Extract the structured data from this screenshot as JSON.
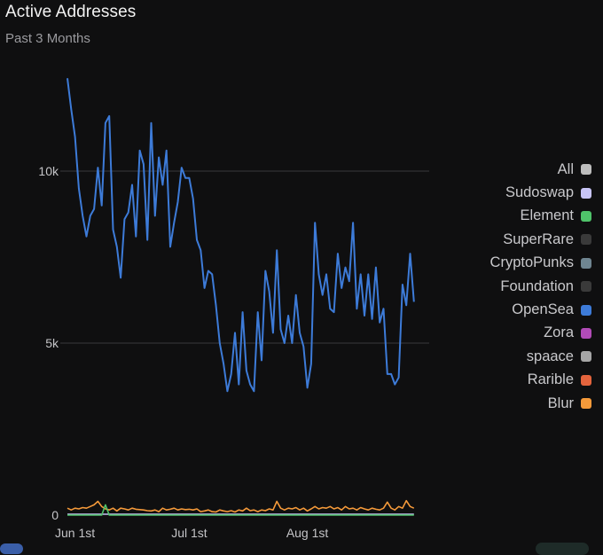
{
  "header": {
    "title": "Active Addresses",
    "subtitle": "Past 3 Months"
  },
  "legend": {
    "items": [
      {
        "label": "All",
        "color": "#bdbdbd"
      },
      {
        "label": "Sudoswap",
        "color": "#c7c4f5"
      },
      {
        "label": "Element",
        "color": "#4fc36a"
      },
      {
        "label": "SuperRare",
        "color": "#3a3a3a"
      },
      {
        "label": "CryptoPunks",
        "color": "#6f8591"
      },
      {
        "label": "Foundation",
        "color": "#3a3a3a"
      },
      {
        "label": "OpenSea",
        "color": "#3d7bd8"
      },
      {
        "label": "Zora",
        "color": "#b14bb7"
      },
      {
        "label": "spaace",
        "color": "#a6a6a6"
      },
      {
        "label": "Rarible",
        "color": "#e4643d"
      },
      {
        "label": "Blur",
        "color": "#f59a3a"
      }
    ]
  },
  "chart_data": {
    "type": "line",
    "title": "Active Addresses",
    "subtitle": "Past 3 Months",
    "xlabel": "",
    "ylabel": "",
    "ylim": [
      0,
      12500
    ],
    "y_ticks": [
      {
        "value": 0,
        "label": "0"
      },
      {
        "value": 5000,
        "label": "5k"
      },
      {
        "value": 10000,
        "label": "10k"
      }
    ],
    "x_ticks": [
      {
        "day": 0,
        "label": "Jun 1st"
      },
      {
        "day": 30,
        "label": "Jul 1st"
      },
      {
        "day": 61,
        "label": "Aug 1st"
      }
    ],
    "x_range_days": [
      -2,
      93
    ],
    "grid": true,
    "legend_position": "right",
    "series": [
      {
        "name": "OpenSea",
        "color": "#3d7bd8",
        "points": [
          [
            -2,
            12700
          ],
          [
            -1,
            11800
          ],
          [
            0,
            11000
          ],
          [
            1,
            9500
          ],
          [
            2,
            8700
          ],
          [
            3,
            8100
          ],
          [
            4,
            8700
          ],
          [
            5,
            8900
          ],
          [
            6,
            10100
          ],
          [
            7,
            9000
          ],
          [
            8,
            11400
          ],
          [
            9,
            11600
          ],
          [
            10,
            8300
          ],
          [
            11,
            7800
          ],
          [
            12,
            6900
          ],
          [
            13,
            8600
          ],
          [
            14,
            8800
          ],
          [
            15,
            9600
          ],
          [
            16,
            8100
          ],
          [
            17,
            10600
          ],
          [
            18,
            10200
          ],
          [
            19,
            8000
          ],
          [
            20,
            11400
          ],
          [
            21,
            8700
          ],
          [
            22,
            10400
          ],
          [
            23,
            9600
          ],
          [
            24,
            10600
          ],
          [
            25,
            7800
          ],
          [
            26,
            8500
          ],
          [
            27,
            9100
          ],
          [
            28,
            10100
          ],
          [
            29,
            9800
          ],
          [
            30,
            9800
          ],
          [
            31,
            9200
          ],
          [
            32,
            8000
          ],
          [
            33,
            7700
          ],
          [
            34,
            6600
          ],
          [
            35,
            7100
          ],
          [
            36,
            7000
          ],
          [
            37,
            6100
          ],
          [
            38,
            5000
          ],
          [
            39,
            4400
          ],
          [
            40,
            3600
          ],
          [
            41,
            4100
          ],
          [
            42,
            5300
          ],
          [
            43,
            3800
          ],
          [
            44,
            5900
          ],
          [
            45,
            4200
          ],
          [
            46,
            3800
          ],
          [
            47,
            3600
          ],
          [
            48,
            5900
          ],
          [
            49,
            4500
          ],
          [
            50,
            7100
          ],
          [
            51,
            6500
          ],
          [
            52,
            5300
          ],
          [
            53,
            7700
          ],
          [
            54,
            5400
          ],
          [
            55,
            5000
          ],
          [
            56,
            5800
          ],
          [
            57,
            5000
          ],
          [
            58,
            6400
          ],
          [
            59,
            5300
          ],
          [
            60,
            4900
          ],
          [
            61,
            3700
          ],
          [
            62,
            4400
          ],
          [
            63,
            8500
          ],
          [
            64,
            7000
          ],
          [
            65,
            6400
          ],
          [
            66,
            7000
          ],
          [
            67,
            6000
          ],
          [
            68,
            5900
          ],
          [
            69,
            7600
          ],
          [
            70,
            6600
          ],
          [
            71,
            7200
          ],
          [
            72,
            6800
          ],
          [
            73,
            8500
          ],
          [
            74,
            6000
          ],
          [
            75,
            7000
          ],
          [
            76,
            5800
          ],
          [
            77,
            7000
          ],
          [
            78,
            5700
          ],
          [
            79,
            7200
          ],
          [
            80,
            5600
          ],
          [
            81,
            6000
          ],
          [
            82,
            4100
          ],
          [
            83,
            4100
          ],
          [
            84,
            3800
          ],
          [
            85,
            4000
          ],
          [
            86,
            6700
          ],
          [
            87,
            6100
          ],
          [
            88,
            7600
          ],
          [
            89,
            6200
          ]
        ]
      },
      {
        "name": "Blur",
        "color": "#f59a3a",
        "points": [
          [
            -2,
            200
          ],
          [
            -1,
            150
          ],
          [
            0,
            200
          ],
          [
            1,
            180
          ],
          [
            2,
            220
          ],
          [
            3,
            200
          ],
          [
            4,
            250
          ],
          [
            5,
            300
          ],
          [
            6,
            400
          ],
          [
            7,
            250
          ],
          [
            8,
            180
          ],
          [
            9,
            150
          ],
          [
            10,
            200
          ],
          [
            11,
            120
          ],
          [
            12,
            200
          ],
          [
            13,
            180
          ],
          [
            14,
            150
          ],
          [
            15,
            200
          ],
          [
            16,
            170
          ],
          [
            17,
            160
          ],
          [
            18,
            150
          ],
          [
            19,
            130
          ],
          [
            20,
            120
          ],
          [
            21,
            150
          ],
          [
            22,
            100
          ],
          [
            23,
            200
          ],
          [
            24,
            150
          ],
          [
            25,
            170
          ],
          [
            26,
            200
          ],
          [
            27,
            150
          ],
          [
            28,
            180
          ],
          [
            29,
            160
          ],
          [
            30,
            170
          ],
          [
            31,
            150
          ],
          [
            32,
            180
          ],
          [
            33,
            100
          ],
          [
            34,
            120
          ],
          [
            35,
            150
          ],
          [
            36,
            100
          ],
          [
            37,
            90
          ],
          [
            38,
            150
          ],
          [
            39,
            120
          ],
          [
            40,
            100
          ],
          [
            41,
            130
          ],
          [
            42,
            90
          ],
          [
            43,
            150
          ],
          [
            44,
            120
          ],
          [
            45,
            200
          ],
          [
            46,
            130
          ],
          [
            47,
            150
          ],
          [
            48,
            100
          ],
          [
            49,
            150
          ],
          [
            50,
            130
          ],
          [
            51,
            180
          ],
          [
            52,
            150
          ],
          [
            53,
            400
          ],
          [
            54,
            200
          ],
          [
            55,
            150
          ],
          [
            56,
            200
          ],
          [
            57,
            180
          ],
          [
            58,
            220
          ],
          [
            59,
            150
          ],
          [
            60,
            200
          ],
          [
            61,
            120
          ],
          [
            62,
            180
          ],
          [
            63,
            250
          ],
          [
            64,
            180
          ],
          [
            65,
            220
          ],
          [
            66,
            200
          ],
          [
            67,
            250
          ],
          [
            68,
            180
          ],
          [
            69,
            220
          ],
          [
            70,
            150
          ],
          [
            71,
            250
          ],
          [
            72,
            180
          ],
          [
            73,
            200
          ],
          [
            74,
            150
          ],
          [
            75,
            220
          ],
          [
            76,
            180
          ],
          [
            77,
            150
          ],
          [
            78,
            200
          ],
          [
            79,
            170
          ],
          [
            80,
            150
          ],
          [
            81,
            200
          ],
          [
            82,
            380
          ],
          [
            83,
            200
          ],
          [
            84,
            150
          ],
          [
            85,
            250
          ],
          [
            86,
            200
          ],
          [
            87,
            420
          ],
          [
            88,
            250
          ],
          [
            89,
            200
          ]
        ]
      },
      {
        "name": "Element",
        "color": "#4fc36a",
        "points": [
          [
            -2,
            0
          ],
          [
            7,
            0
          ],
          [
            8,
            300
          ],
          [
            9,
            0
          ],
          [
            89,
            0
          ]
        ]
      },
      {
        "name": "Sudoswap",
        "color": "#c7c4f5",
        "points": [
          [
            -2,
            25
          ],
          [
            89,
            25
          ]
        ]
      }
    ]
  }
}
